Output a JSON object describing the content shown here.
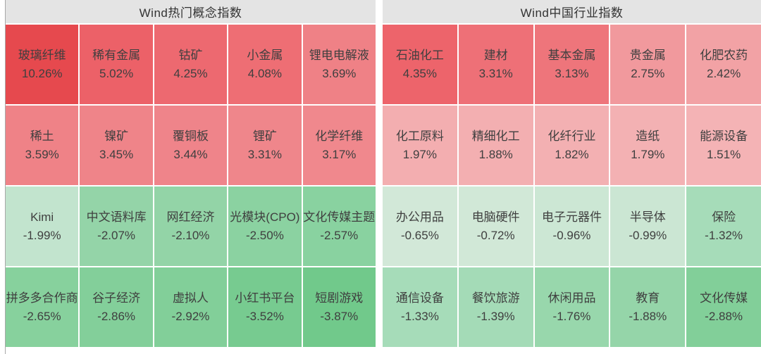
{
  "panels": [
    {
      "title": "Wind热门概念指数",
      "rows": [
        [
          {
            "name": "玻璃纤维",
            "value": "10.26%",
            "color": "#e6494e"
          },
          {
            "name": "稀有金属",
            "value": "5.02%",
            "color": "#ec6168"
          },
          {
            "name": "钴矿",
            "value": "4.25%",
            "color": "#ed6970"
          },
          {
            "name": "小金属",
            "value": "4.08%",
            "color": "#ee6e74"
          },
          {
            "name": "锂电电解液",
            "value": "3.69%",
            "color": "#ef8186"
          }
        ],
        [
          {
            "name": "稀土",
            "value": "3.59%",
            "color": "#ef8287"
          },
          {
            "name": "镍矿",
            "value": "3.45%",
            "color": "#ef8489"
          },
          {
            "name": "覆铜板",
            "value": "3.44%",
            "color": "#ef848a"
          },
          {
            "name": "锂矿",
            "value": "3.31%",
            "color": "#ef868b"
          },
          {
            "name": "化学纤维",
            "value": "3.17%",
            "color": "#f0888d"
          }
        ],
        [
          {
            "name": "Kimi",
            "value": "-1.99%",
            "color": "#c2e4ce"
          },
          {
            "name": "中文语料库",
            "value": "-2.07%",
            "color": "#94d4a8"
          },
          {
            "name": "网红经济",
            "value": "-2.10%",
            "color": "#93d4a7"
          },
          {
            "name": "光模块(CPO)",
            "value": "-2.50%",
            "color": "#8bd2a1"
          },
          {
            "name": "文化传媒主题",
            "value": "-2.57%",
            "color": "#89d2a0"
          }
        ],
        [
          {
            "name": "拼多多合作商",
            "value": "-2.65%",
            "color": "#87d19d"
          },
          {
            "name": "谷子经济",
            "value": "-2.86%",
            "color": "#83cf9a"
          },
          {
            "name": "虚拟人",
            "value": "-2.92%",
            "color": "#82cf99"
          },
          {
            "name": "小红书平台",
            "value": "-3.52%",
            "color": "#77cb90"
          },
          {
            "name": "短剧游戏",
            "value": "-3.87%",
            "color": "#71c98b"
          }
        ]
      ]
    },
    {
      "title": "Wind中国行业指数",
      "rows": [
        [
          {
            "name": "石油化工",
            "value": "4.35%",
            "color": "#ed646b"
          },
          {
            "name": "建材",
            "value": "3.31%",
            "color": "#ee7077"
          },
          {
            "name": "基本金属",
            "value": "3.13%",
            "color": "#ee757b"
          },
          {
            "name": "贵金属",
            "value": "2.75%",
            "color": "#f1999d"
          },
          {
            "name": "化肥农药",
            "value": "2.42%",
            "color": "#f2a2a5"
          }
        ],
        [
          {
            "name": "化工原料",
            "value": "1.97%",
            "color": "#f3aeb0"
          },
          {
            "name": "精细化工",
            "value": "1.88%",
            "color": "#f3afb1"
          },
          {
            "name": "化纤行业",
            "value": "1.82%",
            "color": "#f3b0b2"
          },
          {
            "name": "造纸",
            "value": "1.79%",
            "color": "#f3b1b3"
          },
          {
            "name": "能源设备",
            "value": "1.51%",
            "color": "#f4b3b5"
          }
        ],
        [
          {
            "name": "办公用品",
            "value": "-0.65%",
            "color": "#d2e8d8"
          },
          {
            "name": "电脑硬件",
            "value": "-0.72%",
            "color": "#d1e8d7"
          },
          {
            "name": "电子元器件",
            "value": "-0.96%",
            "color": "#cce7d4"
          },
          {
            "name": "半导体",
            "value": "-0.99%",
            "color": "#cbe6d3"
          },
          {
            "name": "保险",
            "value": "-1.32%",
            "color": "#a6dcb9"
          }
        ],
        [
          {
            "name": "通信设备",
            "value": "-1.33%",
            "color": "#a6dcb9"
          },
          {
            "name": "餐饮旅游",
            "value": "-1.39%",
            "color": "#a4dbb7"
          },
          {
            "name": "休闲用品",
            "value": "-1.76%",
            "color": "#98d7ac"
          },
          {
            "name": "教育",
            "value": "-1.88%",
            "color": "#95d5a9"
          },
          {
            "name": "文化传媒",
            "value": "-2.88%",
            "color": "#82cf99"
          }
        ]
      ]
    }
  ],
  "colors": {
    "header_bg": "#e4e4e4",
    "tile_text": "#3f3f3f",
    "positive_strong": "#e6494e",
    "positive_weak": "#f4b3b5",
    "negative_weak": "#d2e8d8",
    "negative_strong": "#71c98b"
  },
  "chart_data": [
    {
      "type": "heatmap",
      "title": "Wind热门概念指数",
      "layout": "5 columns x 4 rows; red = positive change, green = negative change",
      "legend_position": "none",
      "labels": [
        "玻璃纤维",
        "稀有金属",
        "钴矿",
        "小金属",
        "锂电电解液",
        "稀土",
        "镍矿",
        "覆铜板",
        "锂矿",
        "化学纤维",
        "Kimi",
        "中文语料库",
        "网红经济",
        "光模块(CPO)",
        "文化传媒主题",
        "拼多多合作商",
        "谷子经济",
        "虚拟人",
        "小红书平台",
        "短剧游戏"
      ],
      "values": [
        10.26,
        5.02,
        4.25,
        4.08,
        3.69,
        3.59,
        3.45,
        3.44,
        3.31,
        3.17,
        -1.99,
        -2.07,
        -2.1,
        -2.5,
        -2.57,
        -2.65,
        -2.86,
        -2.92,
        -3.52,
        -3.87
      ],
      "unit": "%"
    },
    {
      "type": "heatmap",
      "title": "Wind中国行业指数",
      "layout": "5 columns x 4 rows; red = positive change, green = negative change",
      "legend_position": "none",
      "labels": [
        "石油化工",
        "建材",
        "基本金属",
        "贵金属",
        "化肥农药",
        "化工原料",
        "精细化工",
        "化纤行业",
        "造纸",
        "能源设备",
        "办公用品",
        "电脑硬件",
        "电子元器件",
        "半导体",
        "保险",
        "通信设备",
        "餐饮旅游",
        "休闲用品",
        "教育",
        "文化传媒"
      ],
      "values": [
        4.35,
        3.31,
        3.13,
        2.75,
        2.42,
        1.97,
        1.88,
        1.82,
        1.79,
        1.51,
        -0.65,
        -0.72,
        -0.96,
        -0.99,
        -1.32,
        -1.33,
        -1.39,
        -1.76,
        -1.88,
        -2.88
      ],
      "unit": "%"
    }
  ]
}
